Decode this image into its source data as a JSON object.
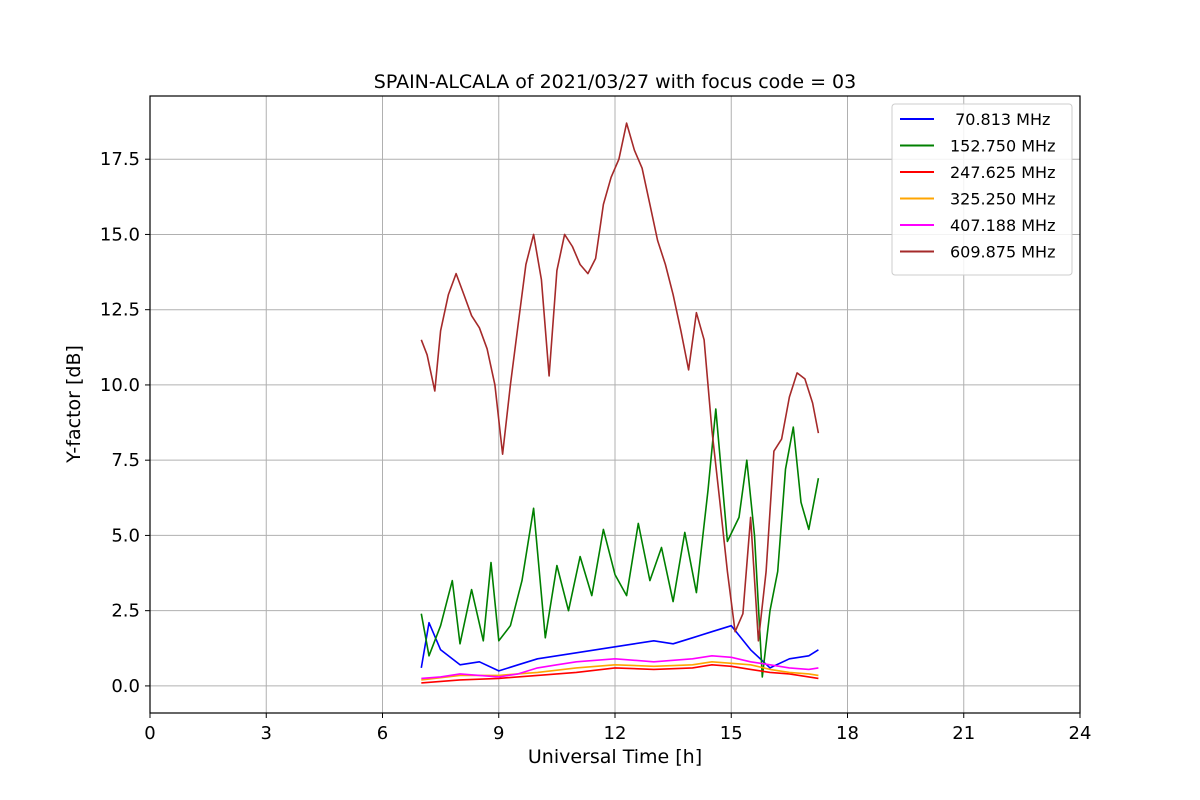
{
  "chart_data": {
    "type": "line",
    "title": "SPAIN-ALCALA of 2021/03/27 with focus code = 03",
    "xlabel": "Universal Time [h]",
    "ylabel": "Y-factor [dB]",
    "xlim": [
      0,
      24
    ],
    "ylim": [
      -0.9,
      19.6
    ],
    "xticks": [
      0,
      3,
      6,
      9,
      12,
      15,
      18,
      21,
      24
    ],
    "yticks": [
      0.0,
      2.5,
      5.0,
      7.5,
      10.0,
      12.5,
      15.0,
      17.5
    ],
    "xtick_labels": [
      "0",
      "3",
      "6",
      "9",
      "12",
      "15",
      "18",
      "21",
      "24"
    ],
    "ytick_labels": [
      "0.0",
      "2.5",
      "5.0",
      "7.5",
      "10.0",
      "12.5",
      "15.0",
      "17.5"
    ],
    "grid": true,
    "legend_position": "top-right",
    "series": [
      {
        "name": " 70.813 MHz",
        "color": "#0000ff",
        "x": [
          7.0,
          7.2,
          7.5,
          8.0,
          8.5,
          9.0,
          9.5,
          10.0,
          10.5,
          11.0,
          11.5,
          12.0,
          12.5,
          13.0,
          13.5,
          14.0,
          14.5,
          15.0,
          15.5,
          16.0,
          16.5,
          17.0,
          17.25
        ],
        "y": [
          0.6,
          2.1,
          1.2,
          0.7,
          0.8,
          0.5,
          0.7,
          0.9,
          1.0,
          1.1,
          1.2,
          1.3,
          1.4,
          1.5,
          1.4,
          1.6,
          1.8,
          2.0,
          1.2,
          0.6,
          0.9,
          1.0,
          1.2
        ]
      },
      {
        "name": "152.750 MHz",
        "color": "#008000",
        "x": [
          7.0,
          7.2,
          7.5,
          7.8,
          8.0,
          8.3,
          8.6,
          8.8,
          9.0,
          9.3,
          9.6,
          9.9,
          10.2,
          10.5,
          10.8,
          11.1,
          11.4,
          11.7,
          12.0,
          12.3,
          12.6,
          12.9,
          13.2,
          13.5,
          13.8,
          14.1,
          14.4,
          14.6,
          14.9,
          15.2,
          15.4,
          15.6,
          15.8,
          16.0,
          16.2,
          16.4,
          16.6,
          16.8,
          17.0,
          17.25
        ],
        "y": [
          2.4,
          1.0,
          2.0,
          3.5,
          1.4,
          3.2,
          1.5,
          4.1,
          1.5,
          2.0,
          3.5,
          5.9,
          1.6,
          4.0,
          2.5,
          4.3,
          3.0,
          5.2,
          3.7,
          3.0,
          5.4,
          3.5,
          4.6,
          2.8,
          5.1,
          3.1,
          6.5,
          9.2,
          4.8,
          5.6,
          7.5,
          5.0,
          0.3,
          2.5,
          3.8,
          7.2,
          8.6,
          6.1,
          5.2,
          6.9
        ]
      },
      {
        "name": "247.625 MHz",
        "color": "#ff0000",
        "x": [
          7.0,
          8.0,
          9.0,
          10.0,
          11.0,
          12.0,
          13.0,
          14.0,
          14.5,
          15.0,
          15.5,
          16.0,
          16.5,
          17.0,
          17.25
        ],
        "y": [
          0.1,
          0.2,
          0.25,
          0.35,
          0.45,
          0.6,
          0.55,
          0.6,
          0.7,
          0.65,
          0.55,
          0.45,
          0.4,
          0.3,
          0.25
        ]
      },
      {
        "name": "325.250 MHz",
        "color": "#ffa500",
        "x": [
          7.0,
          8.0,
          9.0,
          10.0,
          11.0,
          12.0,
          13.0,
          14.0,
          14.5,
          15.0,
          15.5,
          16.0,
          16.5,
          17.0,
          17.25
        ],
        "y": [
          0.2,
          0.35,
          0.35,
          0.45,
          0.6,
          0.7,
          0.65,
          0.7,
          0.8,
          0.75,
          0.7,
          0.55,
          0.45,
          0.4,
          0.35
        ]
      },
      {
        "name": "407.188 MHz",
        "color": "#ff00ff",
        "x": [
          7.0,
          7.5,
          8.0,
          8.5,
          9.0,
          9.5,
          10.0,
          10.5,
          11.0,
          11.5,
          12.0,
          12.5,
          13.0,
          13.5,
          14.0,
          14.5,
          15.0,
          15.5,
          16.0,
          16.5,
          17.0,
          17.25
        ],
        "y": [
          0.25,
          0.3,
          0.4,
          0.35,
          0.3,
          0.4,
          0.6,
          0.7,
          0.8,
          0.85,
          0.9,
          0.85,
          0.8,
          0.85,
          0.9,
          1.0,
          0.95,
          0.8,
          0.7,
          0.6,
          0.55,
          0.6
        ]
      },
      {
        "name": "609.875 MHz",
        "color": "#a52a2a",
        "x": [
          7.0,
          7.15,
          7.35,
          7.5,
          7.7,
          7.9,
          8.1,
          8.3,
          8.5,
          8.7,
          8.9,
          9.1,
          9.3,
          9.5,
          9.7,
          9.9,
          10.1,
          10.3,
          10.5,
          10.7,
          10.9,
          11.1,
          11.3,
          11.5,
          11.7,
          11.9,
          12.1,
          12.3,
          12.5,
          12.7,
          12.9,
          13.1,
          13.3,
          13.5,
          13.7,
          13.9,
          14.1,
          14.3,
          14.5,
          14.7,
          14.9,
          15.1,
          15.3,
          15.5,
          15.7,
          15.9,
          16.1,
          16.3,
          16.5,
          16.7,
          16.9,
          17.1,
          17.25
        ],
        "y": [
          11.5,
          11.0,
          9.8,
          11.8,
          13.0,
          13.7,
          13.0,
          12.3,
          11.9,
          11.2,
          10.0,
          7.7,
          10.0,
          12.0,
          14.0,
          15.0,
          13.5,
          10.3,
          13.8,
          15.0,
          14.6,
          14.0,
          13.7,
          14.2,
          16.0,
          16.9,
          17.5,
          18.7,
          17.8,
          17.2,
          16.0,
          14.8,
          14.0,
          13.0,
          11.8,
          10.5,
          12.4,
          11.5,
          8.5,
          6.2,
          3.8,
          1.8,
          2.4,
          5.6,
          1.5,
          3.8,
          7.8,
          8.2,
          9.6,
          10.4,
          10.2,
          9.4,
          8.4
        ]
      }
    ]
  }
}
